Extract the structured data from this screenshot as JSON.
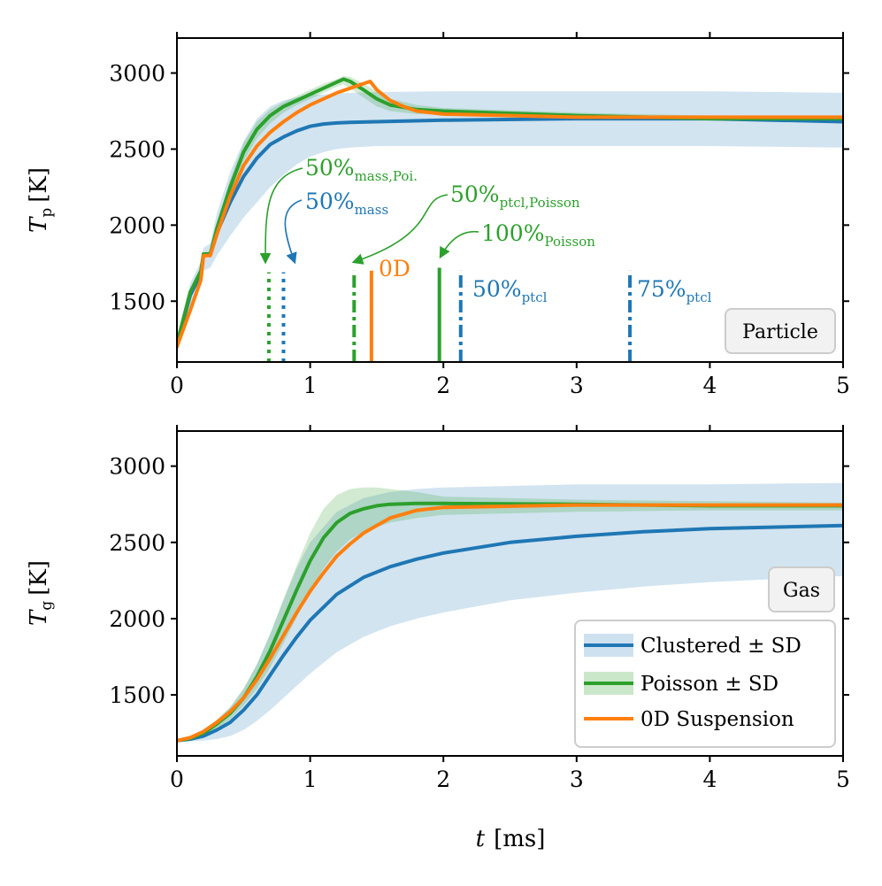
{
  "chart_data": [
    {
      "type": "line",
      "panel": "top",
      "box_label": "Particle",
      "ylabel": {
        "main": "T",
        "sub": "p",
        "unit": "[K]"
      },
      "xlabel": "",
      "xlim": [
        0,
        5
      ],
      "ylim": [
        1100,
        3230
      ],
      "xticks": [
        0,
        1,
        2,
        3,
        4,
        5
      ],
      "yticks": [
        1500,
        2000,
        2500,
        3000
      ],
      "series": [
        {
          "name": "Clustered",
          "color": "#1f77b4",
          "band_color": "#1f77b4",
          "x": [
            0,
            0.1,
            0.18,
            0.2,
            0.25,
            0.3,
            0.4,
            0.5,
            0.6,
            0.7,
            0.8,
            0.9,
            1.0,
            1.1,
            1.2,
            1.3,
            1.5,
            2.0,
            3.0,
            4.0,
            5.0
          ],
          "y": [
            1220,
            1540,
            1680,
            1810,
            1810,
            1950,
            2150,
            2320,
            2440,
            2530,
            2580,
            2620,
            2650,
            2665,
            2672,
            2676,
            2680,
            2690,
            2700,
            2700,
            2680
          ],
          "upper": [
            1260,
            1620,
            1760,
            1850,
            1880,
            2080,
            2350,
            2550,
            2700,
            2780,
            2820,
            2840,
            2855,
            2860,
            2865,
            2870,
            2875,
            2880,
            2880,
            2880,
            2870
          ],
          "lower": [
            1190,
            1460,
            1600,
            1700,
            1720,
            1800,
            1930,
            2050,
            2150,
            2250,
            2330,
            2400,
            2450,
            2480,
            2500,
            2510,
            2520,
            2520,
            2520,
            2520,
            2510
          ]
        },
        {
          "name": "Poisson",
          "color": "#2ca02c",
          "band_color": "#2ca02c",
          "x": [
            0,
            0.1,
            0.18,
            0.2,
            0.25,
            0.3,
            0.4,
            0.5,
            0.6,
            0.7,
            0.8,
            0.9,
            1.0,
            1.1,
            1.2,
            1.25,
            1.3,
            1.4,
            1.5,
            1.6,
            1.8,
            2.0,
            3.0,
            4.0,
            5.0
          ],
          "y": [
            1220,
            1560,
            1700,
            1810,
            1810,
            1980,
            2250,
            2480,
            2630,
            2720,
            2780,
            2820,
            2860,
            2900,
            2940,
            2960,
            2945,
            2890,
            2830,
            2790,
            2760,
            2750,
            2720,
            2700,
            2700
          ],
          "upper": [
            1230,
            1580,
            1720,
            1820,
            1830,
            2020,
            2300,
            2540,
            2680,
            2760,
            2810,
            2850,
            2890,
            2930,
            2960,
            2980,
            2975,
            2930,
            2880,
            2830,
            2790,
            2770,
            2740,
            2720,
            2720
          ],
          "lower": [
            1210,
            1540,
            1680,
            1800,
            1790,
            1950,
            2200,
            2420,
            2570,
            2670,
            2740,
            2790,
            2830,
            2870,
            2910,
            2925,
            2900,
            2840,
            2780,
            2750,
            2730,
            2730,
            2700,
            2690,
            2690
          ]
        },
        {
          "name": "0D Suspension",
          "color": "#ff7f0e",
          "x": [
            0,
            0.1,
            0.18,
            0.2,
            0.25,
            0.3,
            0.4,
            0.5,
            0.6,
            0.7,
            0.8,
            0.9,
            1.0,
            1.1,
            1.2,
            1.3,
            1.4,
            1.45,
            1.5,
            1.6,
            1.7,
            1.8,
            2.0,
            3.0,
            4.0,
            5.0
          ],
          "y": [
            1200,
            1440,
            1640,
            1800,
            1800,
            1940,
            2190,
            2390,
            2520,
            2610,
            2680,
            2740,
            2790,
            2830,
            2870,
            2900,
            2930,
            2945,
            2890,
            2820,
            2780,
            2750,
            2730,
            2710,
            2710,
            2710
          ]
        }
      ],
      "markers": [
        {
          "name": "50% mass Poisson",
          "x": 0.69,
          "color": "#2ca02c",
          "style": "dotted",
          "y_top": 1690
        },
        {
          "name": "50% mass",
          "x": 0.8,
          "color": "#1f77b4",
          "style": "dotted",
          "y_top": 1690
        },
        {
          "name": "50% ptcl Poisson",
          "x": 1.33,
          "color": "#2ca02c",
          "style": "dashdot",
          "y_top": 1700
        },
        {
          "name": "0D",
          "x": 1.46,
          "color": "#ff7f0e",
          "style": "solid",
          "y_top": 1700
        },
        {
          "name": "100% Poisson",
          "x": 1.97,
          "color": "#2ca02c",
          "style": "solid",
          "y_top": 1720
        },
        {
          "name": "50% ptcl",
          "x": 2.13,
          "color": "#1f77b4",
          "style": "dashdot",
          "y_top": 1700
        },
        {
          "name": "75% ptcl",
          "x": 3.4,
          "color": "#1f77b4",
          "style": "dashdot",
          "y_top": 1700
        }
      ],
      "annotations": [
        {
          "main": "50%",
          "sub": "mass,Poi.",
          "color": "#2ca02c"
        },
        {
          "main": "50%",
          "sub": "mass",
          "color": "#1f77b4"
        },
        {
          "main": "50%",
          "sub": "ptcl,Poisson",
          "color": "#2ca02c"
        },
        {
          "main": "100%",
          "sub": "Poisson",
          "color": "#2ca02c"
        },
        {
          "main": "0D",
          "sub": "",
          "color": "#ff7f0e"
        },
        {
          "main": "50%",
          "sub": "ptcl",
          "color": "#1f77b4"
        },
        {
          "main": "75%",
          "sub": "ptcl",
          "color": "#1f77b4"
        }
      ]
    },
    {
      "type": "line",
      "panel": "bottom",
      "box_label": "Gas",
      "ylabel": {
        "main": "T",
        "sub": "g",
        "unit": "[K]"
      },
      "xlabel": {
        "main": "t",
        "unit": "[ms]"
      },
      "xlim": [
        0,
        5
      ],
      "ylim": [
        1100,
        3230
      ],
      "xticks": [
        0,
        1,
        2,
        3,
        4,
        5
      ],
      "yticks": [
        1500,
        2000,
        2500,
        3000
      ],
      "legend": {
        "position": "lower right",
        "entries": [
          {
            "label": "Clustered ± SD",
            "color": "#1f77b4",
            "band": true
          },
          {
            "label": "Poisson ± SD",
            "color": "#2ca02c",
            "band": true
          },
          {
            "label": "0D Suspension",
            "color": "#ff7f0e",
            "band": false
          }
        ]
      },
      "series": [
        {
          "name": "Clustered",
          "color": "#1f77b4",
          "band_color": "#1f77b4",
          "x": [
            0,
            0.1,
            0.2,
            0.3,
            0.4,
            0.5,
            0.6,
            0.7,
            0.8,
            0.9,
            1.0,
            1.2,
            1.4,
            1.6,
            1.8,
            2.0,
            2.5,
            3.0,
            3.5,
            4.0,
            4.5,
            5.0
          ],
          "y": [
            1200,
            1210,
            1230,
            1270,
            1320,
            1400,
            1500,
            1630,
            1760,
            1880,
            1990,
            2160,
            2270,
            2340,
            2390,
            2430,
            2500,
            2540,
            2570,
            2590,
            2600,
            2610
          ],
          "upper": [
            1210,
            1230,
            1270,
            1330,
            1420,
            1540,
            1700,
            1900,
            2120,
            2330,
            2500,
            2700,
            2790,
            2830,
            2850,
            2860,
            2870,
            2880,
            2880,
            2880,
            2885,
            2890
          ],
          "lower": [
            1190,
            1195,
            1200,
            1210,
            1230,
            1270,
            1330,
            1400,
            1480,
            1560,
            1640,
            1780,
            1880,
            1950,
            2000,
            2040,
            2120,
            2170,
            2210,
            2240,
            2260,
            2280
          ]
        },
        {
          "name": "Poisson",
          "color": "#2ca02c",
          "band_color": "#2ca02c",
          "x": [
            0,
            0.1,
            0.2,
            0.3,
            0.4,
            0.5,
            0.6,
            0.7,
            0.8,
            0.9,
            1.0,
            1.1,
            1.2,
            1.3,
            1.4,
            1.5,
            1.6,
            1.8,
            2.0,
            3.0,
            4.0,
            5.0
          ],
          "y": [
            1200,
            1215,
            1250,
            1310,
            1380,
            1480,
            1620,
            1790,
            1990,
            2190,
            2380,
            2530,
            2630,
            2690,
            2720,
            2740,
            2750,
            2755,
            2755,
            2750,
            2740,
            2740
          ],
          "upper": [
            1205,
            1225,
            1270,
            1340,
            1420,
            1540,
            1700,
            1900,
            2130,
            2350,
            2560,
            2720,
            2810,
            2850,
            2860,
            2860,
            2850,
            2830,
            2800,
            2780,
            2770,
            2760
          ],
          "lower": [
            1195,
            1205,
            1230,
            1280,
            1340,
            1430,
            1540,
            1680,
            1840,
            2010,
            2180,
            2330,
            2440,
            2520,
            2570,
            2600,
            2630,
            2660,
            2680,
            2700,
            2710,
            2710
          ]
        },
        {
          "name": "0D Suspension",
          "color": "#ff7f0e",
          "x": [
            0,
            0.1,
            0.2,
            0.3,
            0.4,
            0.5,
            0.6,
            0.7,
            0.8,
            0.9,
            1.0,
            1.1,
            1.2,
            1.3,
            1.4,
            1.5,
            1.6,
            1.8,
            2.0,
            3.0,
            4.0,
            5.0
          ],
          "y": [
            1200,
            1220,
            1260,
            1320,
            1390,
            1480,
            1600,
            1740,
            1890,
            2040,
            2180,
            2300,
            2410,
            2490,
            2560,
            2610,
            2660,
            2710,
            2730,
            2745,
            2745,
            2745
          ]
        }
      ]
    }
  ]
}
